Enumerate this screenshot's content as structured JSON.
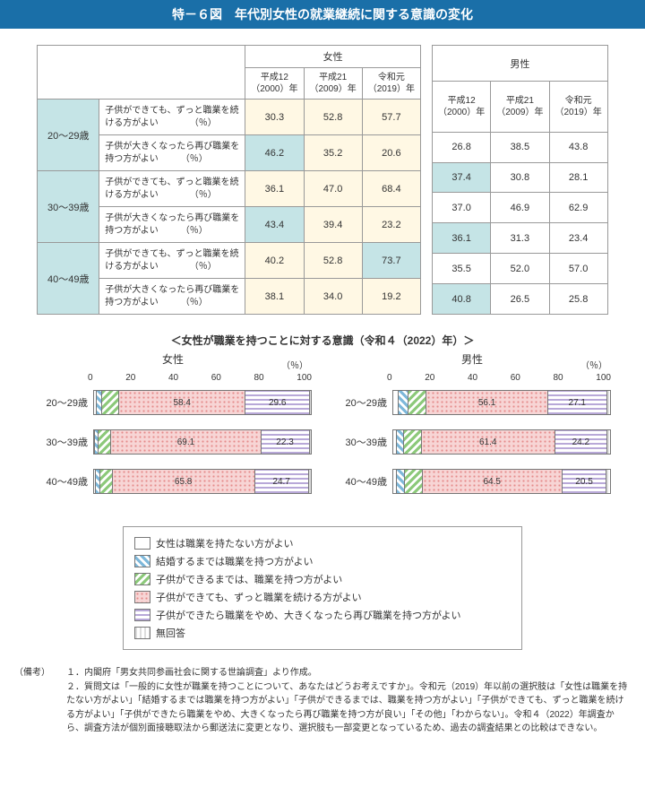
{
  "title": "特－６図　年代別女性の就業継続に関する意識の変化",
  "table": {
    "female_header": "女性",
    "male_header": "男性",
    "year_cols": [
      "平成12（2000）年",
      "平成21（2009）年",
      "令和元（2019）年"
    ],
    "desc_continue": "子供ができても、ずっと職業を続ける方がよい　　　　（％）",
    "desc_return": "子供が大きくなったら再び職業を持つ方がよい　　　（％）",
    "ages": [
      "20～29歳",
      "30～39歳",
      "40～49歳"
    ],
    "female": [
      [
        "30.3",
        "52.8",
        "57.7"
      ],
      [
        "46.2",
        "35.2",
        "20.6"
      ],
      [
        "36.1",
        "47.0",
        "68.4"
      ],
      [
        "43.4",
        "39.4",
        "23.2"
      ],
      [
        "40.2",
        "52.8",
        "73.7"
      ],
      [
        "38.1",
        "34.0",
        "19.2"
      ]
    ],
    "male": [
      [
        "26.8",
        "38.5",
        "43.8"
      ],
      [
        "37.4",
        "30.8",
        "28.1"
      ],
      [
        "37.0",
        "46.9",
        "62.9"
      ],
      [
        "36.1",
        "31.3",
        "23.4"
      ],
      [
        "35.5",
        "52.0",
        "57.0"
      ],
      [
        "40.8",
        "26.5",
        "25.8"
      ]
    ],
    "highlight_female": [
      [
        0,
        0,
        0
      ],
      [
        1,
        0,
        0
      ],
      [
        0,
        0,
        0
      ],
      [
        1,
        0,
        0
      ],
      [
        0,
        0,
        1
      ],
      [
        0,
        0,
        0
      ]
    ],
    "highlight_male": [
      [
        0,
        0,
        0
      ],
      [
        1,
        0,
        0
      ],
      [
        0,
        0,
        0
      ],
      [
        1,
        0,
        0
      ],
      [
        0,
        0,
        0
      ],
      [
        1,
        0,
        0
      ]
    ]
  },
  "chart": {
    "subtitle": "＜女性が職業を持つことに対する意識（令和４（2022）年）＞",
    "axis_ticks": [
      "0",
      "20",
      "40",
      "60",
      "80",
      "100"
    ],
    "pct_label": "（％）",
    "panels": [
      {
        "name": "女性",
        "rows": [
          {
            "label": "20～29歳",
            "segs": [
              1.2,
              2.5,
              7.9,
              58.4,
              29.6,
              0.4
            ],
            "show": [
              null,
              null,
              null,
              "58.4",
              "29.6",
              null
            ]
          },
          {
            "label": "30～39歳",
            "segs": [
              0.5,
              1.5,
              6.0,
              69.1,
              22.3,
              0.6
            ],
            "show": [
              null,
              null,
              null,
              "69.1",
              "22.3",
              null
            ]
          },
          {
            "label": "40～49歳",
            "segs": [
              0.8,
              2.0,
              5.7,
              65.8,
              24.7,
              1.0
            ],
            "show": [
              null,
              null,
              null,
              "65.8",
              "24.7",
              null
            ]
          }
        ]
      },
      {
        "name": "男性",
        "rows": [
          {
            "label": "20～29歳",
            "segs": [
              2.5,
              4.5,
              8.4,
              56.1,
              27.1,
              1.4
            ],
            "show": [
              null,
              null,
              null,
              "56.1",
              "27.1",
              null
            ]
          },
          {
            "label": "30～39歳",
            "segs": [
              1.5,
              3.5,
              8.2,
              61.4,
              24.2,
              1.2
            ],
            "show": [
              null,
              null,
              null,
              "61.4",
              "24.2",
              null
            ]
          },
          {
            "label": "40～49歳",
            "segs": [
              1.8,
              3.5,
              8.2,
              64.5,
              20.5,
              1.5
            ],
            "show": [
              null,
              null,
              null,
              "64.5",
              "20.5",
              null
            ]
          }
        ]
      }
    ],
    "seg_classes": [
      "p-none",
      "p-marry",
      "p-child",
      "p-cont",
      "p-return",
      "p-na"
    ]
  },
  "legend": [
    {
      "cls": "p-none",
      "text": "女性は職業を持たない方がよい"
    },
    {
      "cls": "p-marry",
      "text": "結婚するまでは職業を持つ方がよい"
    },
    {
      "cls": "p-child",
      "text": "子供ができるまでは、職業を持つ方がよい"
    },
    {
      "cls": "p-cont",
      "text": "子供ができても、ずっと職業を続ける方がよい"
    },
    {
      "cls": "p-return",
      "text": "子供ができたら職業をやめ、大きくなったら再び職業を持つ方がよい"
    },
    {
      "cls": "p-na",
      "text": "無回答"
    }
  ],
  "notes": {
    "label": "（備考）",
    "items": [
      "１．内閣府「男女共同参画社会に関する世論調査」より作成。",
      "２．質問文は「一般的に女性が職業を持つことについて、あなたはどうお考えですか」。令和元（2019）年以前の選択肢は「女性は職業を持たない方がよい」「結婚するまでは職業を持つ方がよい」「子供ができるまでは、職業を持つ方がよい」「子供ができても、ずっと職業を続ける方がよい」「子供ができたら職業をやめ、大きくなったら再び職業を持つ方が良い」「その他」「わからない」。令和４（2022）年調査から、調査方法が個別面接聴取法から郵送法に変更となり、選択肢も一部変更となっているため、過去の調査結果との比較はできない。"
    ]
  }
}
